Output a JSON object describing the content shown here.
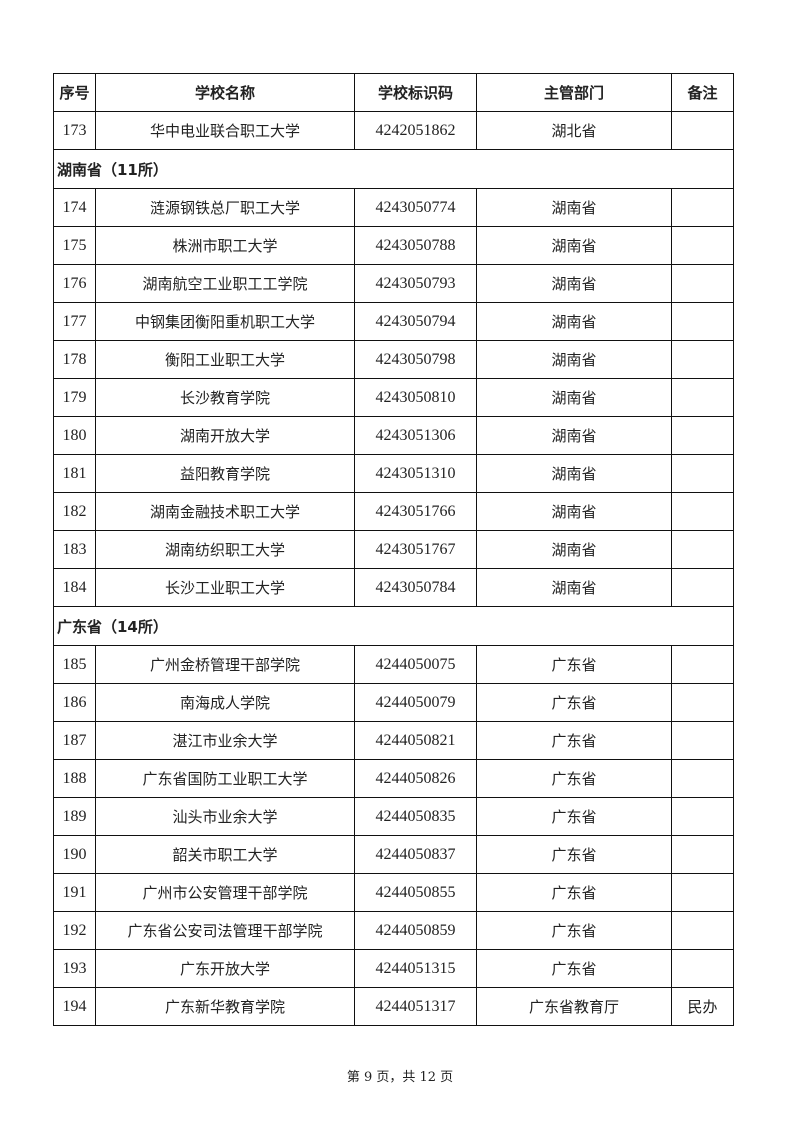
{
  "headers": [
    "序号",
    "学校名称",
    "学校标识码",
    "主管部门",
    "备注"
  ],
  "sections": [
    {
      "title": "",
      "rows": [
        [
          "173",
          "华中电业联合职工大学",
          "4242051862",
          "湖北省",
          ""
        ]
      ]
    },
    {
      "title": "湖南省（11所）",
      "rows": [
        [
          "174",
          "涟源钢铁总厂职工大学",
          "4243050774",
          "湖南省",
          ""
        ],
        [
          "175",
          "株洲市职工大学",
          "4243050788",
          "湖南省",
          ""
        ],
        [
          "176",
          "湖南航空工业职工工学院",
          "4243050793",
          "湖南省",
          ""
        ],
        [
          "177",
          "中钢集团衡阳重机职工大学",
          "4243050794",
          "湖南省",
          ""
        ],
        [
          "178",
          "衡阳工业职工大学",
          "4243050798",
          "湖南省",
          ""
        ],
        [
          "179",
          "长沙教育学院",
          "4243050810",
          "湖南省",
          ""
        ],
        [
          "180",
          "湖南开放大学",
          "4243051306",
          "湖南省",
          ""
        ],
        [
          "181",
          "益阳教育学院",
          "4243051310",
          "湖南省",
          ""
        ],
        [
          "182",
          "湖南金融技术职工大学",
          "4243051766",
          "湖南省",
          ""
        ],
        [
          "183",
          "湖南纺织职工大学",
          "4243051767",
          "湖南省",
          ""
        ],
        [
          "184",
          "长沙工业职工大学",
          "4243050784",
          "湖南省",
          ""
        ]
      ]
    },
    {
      "title": "广东省（14所）",
      "rows": [
        [
          "185",
          "广州金桥管理干部学院",
          "4244050075",
          "广东省",
          ""
        ],
        [
          "186",
          "南海成人学院",
          "4244050079",
          "广东省",
          ""
        ],
        [
          "187",
          "湛江市业余大学",
          "4244050821",
          "广东省",
          ""
        ],
        [
          "188",
          "广东省国防工业职工大学",
          "4244050826",
          "广东省",
          ""
        ],
        [
          "189",
          "汕头市业余大学",
          "4244050835",
          "广东省",
          ""
        ],
        [
          "190",
          "韶关市职工大学",
          "4244050837",
          "广东省",
          ""
        ],
        [
          "191",
          "广州市公安管理干部学院",
          "4244050855",
          "广东省",
          ""
        ],
        [
          "192",
          "广东省公安司法管理干部学院",
          "4244050859",
          "广东省",
          ""
        ],
        [
          "193",
          "广东开放大学",
          "4244051315",
          "广东省",
          ""
        ],
        [
          "194",
          "广东新华教育学院",
          "4244051317",
          "广东省教育厅",
          "民办"
        ]
      ]
    }
  ],
  "footer": "第 9 页，共 12 页"
}
